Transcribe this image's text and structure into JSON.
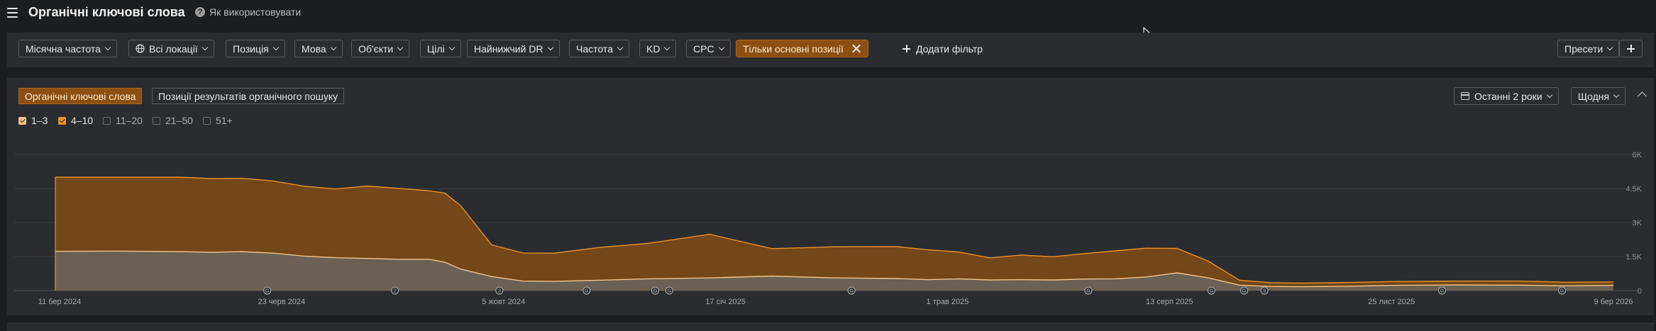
{
  "header": {
    "title": "Органічні ключові слова",
    "how_to": "Як використовувати"
  },
  "filters": [
    {
      "label": "Місячна частота"
    },
    {
      "label": "Всі локації",
      "icon": "globe-icon"
    },
    {
      "label": "Позиція"
    },
    {
      "label": "Мова"
    },
    {
      "label": "Об'єкти"
    },
    {
      "label": "Цілі"
    },
    {
      "label": "Найнижчий DR"
    },
    {
      "label": "Частота"
    },
    {
      "label": "KD"
    },
    {
      "label": "CPC"
    }
  ],
  "active_filter": {
    "label": "Тільки основні позиції"
  },
  "add_filter": "Додати фільтр",
  "presets": "Пресети",
  "tabs": [
    {
      "label": "Органічні ключові слова",
      "selected": true
    },
    {
      "label": "Позиції результатів органічного пошуку",
      "selected": false
    }
  ],
  "range_button": "Останні 2 роки",
  "interval_button": "Щодня",
  "legend": [
    {
      "label": "1–3",
      "checked": true,
      "color": "#f3c38a"
    },
    {
      "label": "4–10",
      "checked": true,
      "color": "#e8922e"
    },
    {
      "label": "11–20",
      "checked": false
    },
    {
      "label": "21–50",
      "checked": false
    },
    {
      "label": "51+",
      "checked": false
    }
  ],
  "colors": {
    "accent": "#8b4f12",
    "series_top3": "#f3c38a",
    "series_4_10": "#e8922e"
  },
  "chart_data": {
    "type": "area",
    "stacked": true,
    "y_ticks": [
      "6K",
      "4.5K",
      "3K",
      "1.5K",
      "0"
    ],
    "ylim": [
      0,
      6000
    ],
    "x_ticks": [
      "11 бер 2024",
      "23 черв 2024",
      "5 жовт 2024",
      "17 січ 2025",
      "1 трав 2025",
      "13 серп 2025",
      "25 лист 2025",
      "9 бер 2026"
    ],
    "x_index": [
      0,
      0.04,
      0.08,
      0.1,
      0.12,
      0.14,
      0.16,
      0.18,
      0.2,
      0.22,
      0.24,
      0.25,
      0.26,
      0.28,
      0.3,
      0.32,
      0.35,
      0.38,
      0.42,
      0.46,
      0.5,
      0.54,
      0.56,
      0.58,
      0.6,
      0.62,
      0.64,
      0.66,
      0.68,
      0.7,
      0.72,
      0.74,
      0.76,
      0.78,
      0.8,
      0.83,
      0.86,
      0.9,
      0.94,
      0.97,
      1
    ],
    "series": [
      {
        "name": "1–3",
        "values": [
          1730,
          1740,
          1720,
          1690,
          1720,
          1650,
          1520,
          1450,
          1420,
          1380,
          1380,
          1250,
          950,
          620,
          420,
          410,
          460,
          520,
          560,
          640,
          560,
          530,
          480,
          520,
          470,
          480,
          470,
          510,
          520,
          600,
          780,
          560,
          240,
          180,
          170,
          190,
          230,
          250,
          240,
          210,
          230
        ]
      },
      {
        "name": "4–10",
        "values": [
          3270,
          3260,
          3280,
          3250,
          3230,
          3180,
          3080,
          3030,
          3190,
          3130,
          3020,
          3050,
          2800,
          1400,
          1240,
          1240,
          1450,
          1560,
          1920,
          1210,
          1370,
          1410,
          1320,
          1180,
          970,
          1090,
          1020,
          1120,
          1230,
          1270,
          1080,
          740,
          220,
          170,
          160,
          170,
          170,
          170,
          180,
          160,
          150
        ]
      }
    ],
    "annotations": [
      {
        "x": 0.136,
        "label": "G"
      },
      {
        "x": 0.218,
        "label": "2"
      },
      {
        "x": 0.285,
        "label": "3"
      },
      {
        "x": 0.341,
        "label": "G"
      },
      {
        "x": 0.385,
        "label": "G"
      },
      {
        "x": 0.394,
        "label": "G"
      },
      {
        "x": 0.511,
        "label": "G"
      },
      {
        "x": 0.663,
        "label": "G"
      },
      {
        "x": 0.742,
        "label": "G"
      },
      {
        "x": 0.763,
        "label": "G"
      },
      {
        "x": 0.776,
        "label": "3"
      },
      {
        "x": 0.89,
        "label": "G"
      },
      {
        "x": 0.967,
        "label": "G"
      }
    ]
  }
}
